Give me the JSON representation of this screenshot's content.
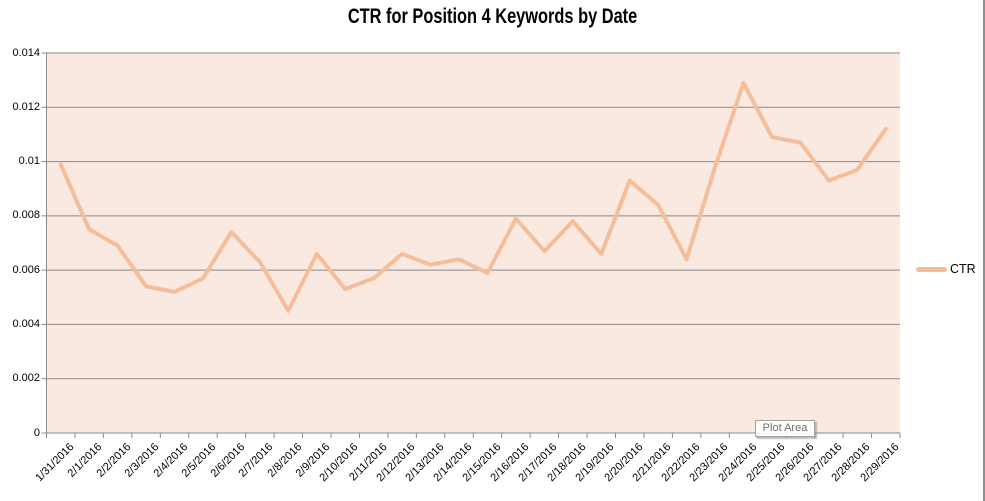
{
  "tooltip": {
    "text": "Plot Area"
  },
  "colors": {
    "line": "#F5BE9B",
    "plot_bg": "#FAE9E0",
    "gridline": "#8B8B8B",
    "axis": "#8B8B8B",
    "right_border": "#8F8F8F",
    "tooltip_text": "#6F6F6F",
    "tooltip_border": "#A3A3A3",
    "title_text": "#000000",
    "tick_label_text": "#000000"
  },
  "legend": {
    "position": "right"
  },
  "chart_data": {
    "type": "line",
    "title": "CTR for Position 4 Keywords by Date",
    "xlabel": "",
    "ylabel": "",
    "ylim": [
      0,
      0.014
    ],
    "ytick_step": 0.002,
    "ytick_labels": [
      "0.014",
      "0.012",
      "0.01",
      "0.008",
      "0.006",
      "0.004",
      "0.002",
      "0"
    ],
    "grid": true,
    "legend_position": "right",
    "categories": [
      "1/31/2016",
      "2/1/2016",
      "2/2/2016",
      "2/3/2016",
      "2/4/2016",
      "2/5/2016",
      "2/6/2016",
      "2/7/2016",
      "2/8/2016",
      "2/9/2016",
      "2/10/2016",
      "2/11/2016",
      "2/12/2016",
      "2/13/2016",
      "2/14/2016",
      "2/15/2016",
      "2/16/2016",
      "2/17/2016",
      "2/18/2016",
      "2/19/2016",
      "2/20/2016",
      "2/21/2016",
      "2/22/2016",
      "2/23/2016",
      "2/24/2016",
      "2/25/2016",
      "2/26/2016",
      "2/27/2016",
      "2/28/2016",
      "2/29/2016"
    ],
    "series": [
      {
        "name": "CTR",
        "values": [
          0.0099,
          0.0075,
          0.0069,
          0.0054,
          0.0052,
          0.0057,
          0.0074,
          0.0063,
          0.0045,
          0.0066,
          0.0053,
          0.0057,
          0.0066,
          0.0062,
          0.0064,
          0.0059,
          0.0079,
          0.0067,
          0.0078,
          0.0066,
          0.0093,
          0.0084,
          0.0064,
          0.0098,
          0.0129,
          0.0109,
          0.0107,
          0.0093,
          0.0097,
          0.0112
        ]
      }
    ]
  }
}
